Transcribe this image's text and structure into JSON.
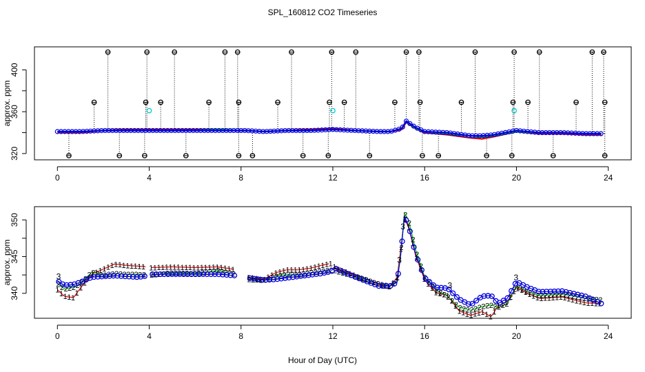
{
  "title": "SPL_160812  CO2 Timeseries",
  "xlabel": "Hour of Day (UTC)",
  "colors": {
    "series1": "#dd0000",
    "series2": "#00bb00",
    "series3": "#0000dd",
    "flagged": "#000000",
    "suspect": "#00cccc"
  },
  "chart_data": [
    {
      "type": "scatter",
      "panel": "top",
      "ylabel": "approx. ppm",
      "xlim": [
        -1,
        25
      ],
      "ylim": [
        314,
        422
      ],
      "xticks": [
        0,
        4,
        8,
        12,
        16,
        20,
        24
      ],
      "yticks": [
        320,
        360,
        400
      ],
      "flagged_high_hours": [
        2.2,
        3.9,
        5.1,
        7.3,
        7.85,
        10.2,
        11.95,
        13.0,
        15.2,
        15.75,
        18.2,
        19.9,
        21.0,
        23.3,
        23.8
      ],
      "flagged_mid_hours": [
        1.6,
        3.85,
        4.5,
        6.6,
        7.9,
        9.6,
        11.85,
        12.5,
        14.7,
        15.8,
        17.6,
        19.85,
        20.5,
        22.6,
        23.85
      ],
      "flagged_low_hours": [
        0.5,
        2.7,
        3.8,
        5.6,
        7.9,
        8.5,
        10.7,
        11.8,
        13.6,
        15.9,
        16.6,
        18.7,
        19.8,
        21.6,
        23.85
      ],
      "flagged_high_ppm": 417,
      "flagged_mid_ppm": 369,
      "flagged_low_ppm": 318,
      "suspect_points": [
        {
          "x": 4.0,
          "y": 361
        },
        {
          "x": 12.0,
          "y": 361
        },
        {
          "x": 19.9,
          "y": 361
        }
      ],
      "series": [
        {
          "name": "1",
          "color": "#dd0000",
          "hours": [
            0,
            1,
            2,
            3,
            4,
            5,
            6,
            7,
            7.8,
            8.2,
            9,
            10,
            11,
            12,
            13,
            14,
            14.5,
            15.0,
            15.2,
            15.6,
            16,
            17,
            18,
            18.5,
            19,
            20,
            21,
            22,
            23,
            23.7
          ],
          "ppm": [
            340,
            340,
            342,
            343,
            343,
            343,
            343,
            343,
            342,
            342,
            341,
            342,
            343,
            344,
            342,
            341,
            341,
            343,
            350,
            344,
            340,
            338,
            335,
            334,
            336,
            341,
            339,
            339,
            338,
            338
          ]
        },
        {
          "name": "2",
          "color": "#00bb00",
          "hours": [
            0,
            1,
            2,
            3,
            4,
            5,
            6,
            7,
            7.8,
            8.2,
            9,
            10,
            11,
            12,
            13,
            14,
            14.5,
            15.0,
            15.2,
            15.6,
            16,
            17,
            18,
            18.5,
            19,
            20,
            21,
            22,
            23,
            23.7
          ],
          "ppm": [
            341,
            341,
            342,
            342,
            342,
            342,
            342,
            343,
            342,
            342,
            341,
            342,
            342,
            343,
            342,
            341,
            341,
            344,
            351,
            344,
            341,
            339,
            337,
            336,
            337,
            341,
            340,
            340,
            339,
            339
          ]
        },
        {
          "name": "3",
          "color": "#0000dd",
          "hours": [
            0,
            1,
            2,
            3,
            4,
            5,
            6,
            7,
            7.8,
            8.2,
            9,
            10,
            11,
            12,
            13,
            14,
            14.5,
            15.0,
            15.2,
            15.6,
            16,
            17,
            18,
            18.5,
            19,
            20,
            21,
            22,
            23,
            23.7
          ],
          "ppm": [
            341,
            341,
            342,
            342,
            342,
            342,
            342,
            342,
            342,
            342,
            341,
            342,
            342,
            343,
            342,
            341,
            341,
            344,
            351,
            345,
            341,
            340,
            337,
            337,
            338,
            342,
            340,
            340,
            339,
            339
          ]
        }
      ]
    },
    {
      "type": "line",
      "panel": "bottom",
      "ylabel": "approx. ppm",
      "xlim": [
        -1,
        25
      ],
      "ylim": [
        336.6,
        351.8
      ],
      "xticks": [
        0,
        4,
        8,
        12,
        16,
        20,
        24
      ],
      "yticks": [
        340,
        345,
        350
      ],
      "series": [
        {
          "name": "1",
          "label": "1",
          "color": "#dd0000",
          "hours": [
            0,
            0.3,
            0.7,
            1.0,
            1.5,
            2.0,
            2.5,
            3.0,
            3.5,
            3.95,
            4.1,
            5,
            6,
            7,
            7.8,
            8.3,
            9,
            9.5,
            10,
            10.5,
            11,
            11.5,
            11.95,
            12.1,
            13,
            14,
            14.5,
            14.8,
            15.0,
            15.1,
            15.3,
            15.6,
            16,
            16.5,
            17,
            17.5,
            18,
            18.5,
            18.9,
            19.2,
            19.6,
            20.0,
            20.5,
            21,
            22,
            23,
            23.7
          ],
          "ppm": [
            340.5,
            339.6,
            339.4,
            340.7,
            342.6,
            343.3,
            344.0,
            343.8,
            343.7,
            343.6,
            343.5,
            343.6,
            343.5,
            343.6,
            343.2,
            342.2,
            341.9,
            342.8,
            343.2,
            343.2,
            343.4,
            343.8,
            344.1,
            343.5,
            342.4,
            341.2,
            340.9,
            342.2,
            347.0,
            350.3,
            349.0,
            345.2,
            341.8,
            340.1,
            339.7,
            337.6,
            337.0,
            337.5,
            336.8,
            338.3,
            338.9,
            340.8,
            340.0,
            339.3,
            339.5,
            338.7,
            338.6
          ]
        },
        {
          "name": "2",
          "label": "2",
          "color": "#00bb00",
          "hours": [
            0,
            0.3,
            0.7,
            1.0,
            1.5,
            2.0,
            2.5,
            3.0,
            3.5,
            3.95,
            4.1,
            5,
            6,
            7,
            7.8,
            8.3,
            9,
            9.5,
            10,
            10.5,
            11,
            11.5,
            11.95,
            12.1,
            13,
            14,
            14.5,
            14.8,
            15.0,
            15.1,
            15.3,
            15.6,
            16,
            16.5,
            17,
            17.5,
            18,
            18.5,
            18.9,
            19.2,
            19.6,
            20.0,
            20.5,
            21,
            22,
            23,
            23.7
          ],
          "ppm": [
            341.3,
            340.6,
            340.8,
            341.3,
            342.9,
            342.5,
            342.7,
            342.6,
            342.6,
            342.5,
            342.5,
            342.8,
            342.7,
            343.1,
            342.6,
            341.9,
            341.8,
            342.3,
            342.6,
            342.5,
            342.8,
            343.0,
            343.2,
            343.1,
            342.3,
            341.3,
            341.0,
            341.7,
            346.5,
            351.0,
            350.0,
            346.0,
            342.2,
            340.4,
            339.6,
            338.1,
            337.7,
            338.2,
            338.4,
            338.1,
            338.6,
            341.0,
            340.2,
            339.7,
            339.9,
            339.3,
            339.1
          ]
        },
        {
          "name": "3",
          "label": "3",
          "color": "#0000dd",
          "hours": [
            0,
            0.3,
            0.7,
            1.0,
            1.5,
            2.0,
            2.5,
            3.0,
            3.5,
            3.95,
            4.1,
            5,
            6,
            7,
            7.8,
            8.3,
            9,
            9.5,
            10,
            10.5,
            11,
            11.5,
            11.95,
            12.1,
            13,
            14,
            14.5,
            14.8,
            15.0,
            15.1,
            15.3,
            15.6,
            16,
            16.5,
            17,
            17.5,
            18,
            18.5,
            18.9,
            19.2,
            19.6,
            20.0,
            20.5,
            21,
            22,
            23,
            23.7
          ],
          "ppm": [
            341.7,
            341.1,
            341.2,
            341.5,
            342.2,
            342.3,
            342.4,
            342.3,
            342.2,
            342.4,
            342.6,
            342.6,
            342.6,
            342.6,
            342.4,
            342.1,
            341.8,
            341.9,
            342.1,
            342.3,
            342.5,
            342.7,
            343.0,
            343.4,
            342.2,
            341.0,
            341.0,
            341.5,
            346.2,
            350.6,
            349.2,
            345.4,
            342.1,
            340.8,
            340.7,
            339.2,
            338.4,
            339.6,
            339.7,
            338.6,
            339.3,
            341.6,
            340.8,
            340.2,
            340.3,
            339.6,
            338.6
          ]
        }
      ]
    }
  ]
}
